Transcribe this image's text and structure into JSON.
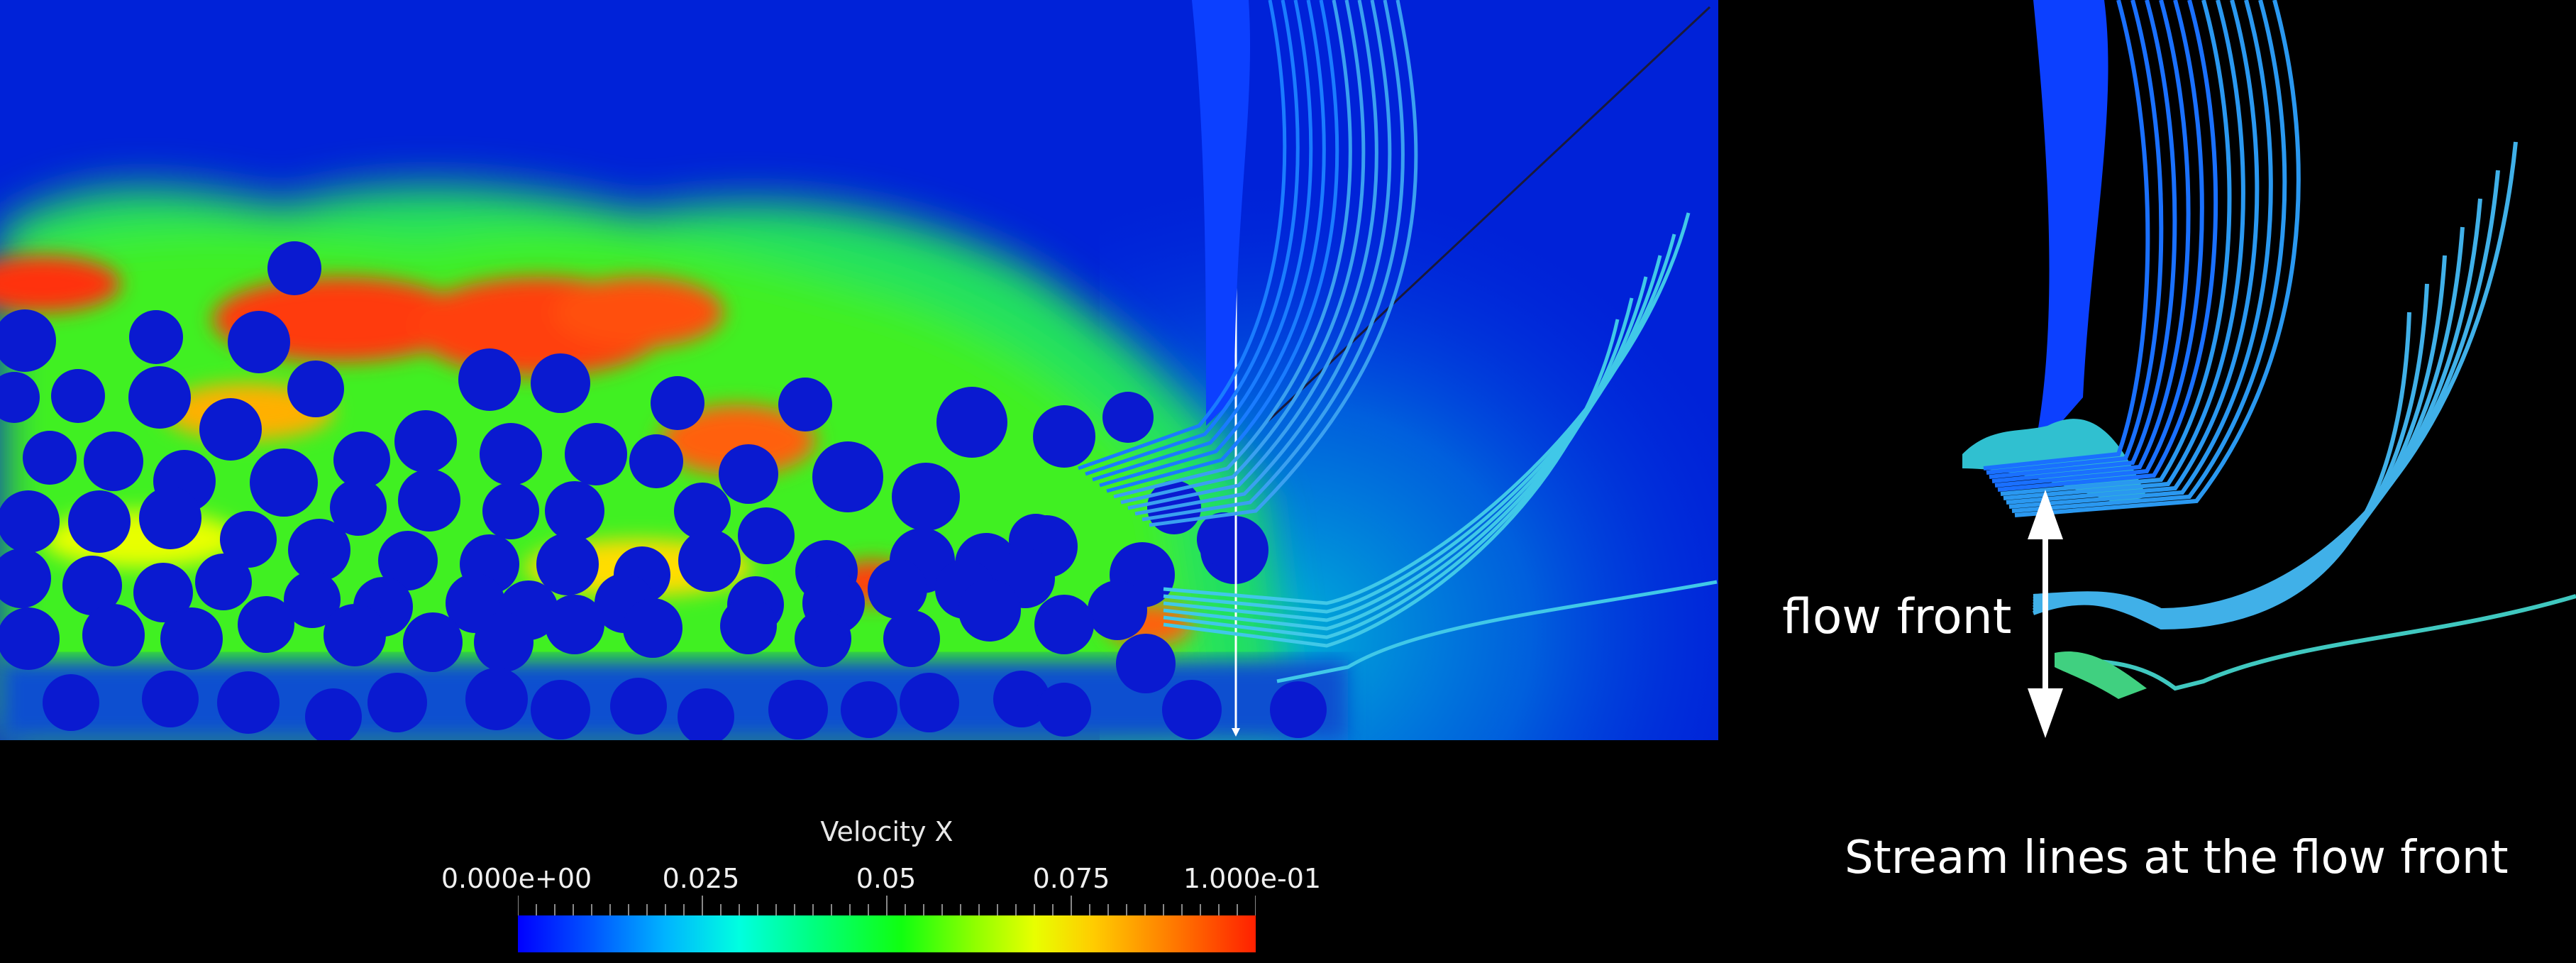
{
  "colorbar": {
    "title": "Velocity X",
    "ticks": [
      "0.000e+00",
      "0.025",
      "0.05",
      "0.075",
      "1.000e-01"
    ],
    "colors": [
      "#0000ff",
      "#00ffe0",
      "#10ff10",
      "#e8ff00",
      "#ff2000"
    ]
  },
  "annotations": {
    "flow_front_label": "flow front",
    "caption": "Stream lines at the flow front"
  }
}
